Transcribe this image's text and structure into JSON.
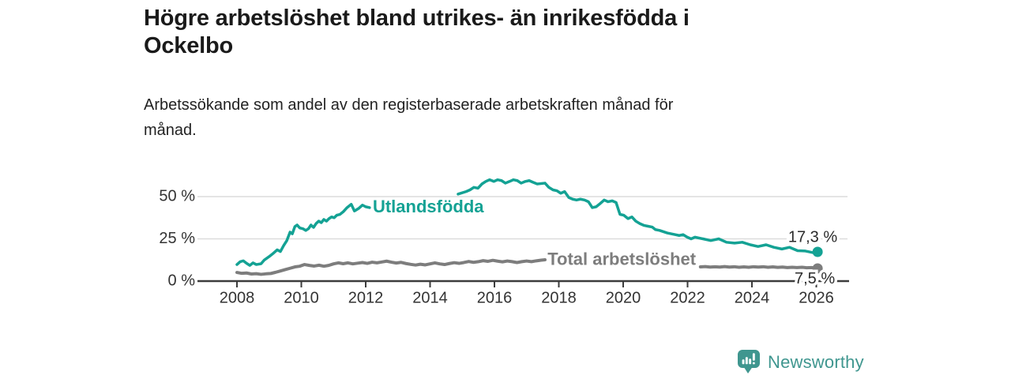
{
  "header": {
    "title_lines": [
      "Högre arbetslöshet bland utrikes- än inrikesfödda i",
      "Ockelbo"
    ],
    "subtitle_lines": [
      "Arbetssökande som andel av den registerbaserade arbetskraften månad för",
      "månad."
    ]
  },
  "footer": {
    "brand": "Newsworthy",
    "brand_color": "#3f968f"
  },
  "chart_data": {
    "type": "line",
    "title": "Högre arbetslöshet bland utrikes- än inrikesfödda i Ockelbo",
    "subtitle": "Arbetssökande som andel av den registerbaserade arbetskraften månad för månad.",
    "xlabel": "",
    "ylabel": "",
    "xlim": [
      2007.9,
      2027
    ],
    "ylim": [
      0,
      62
    ],
    "grid": "horizontal",
    "legend_position": "inline-labels",
    "x_ticks": [
      2008,
      2010,
      2012,
      2014,
      2016,
      2018,
      2020,
      2022,
      2024,
      2026
    ],
    "y_ticks": [
      {
        "value": 0,
        "label": "0 %"
      },
      {
        "value": 25,
        "label": "25 %"
      },
      {
        "value": 50,
        "label": "50 %"
      }
    ],
    "series": [
      {
        "name": "Utlandsfödda",
        "color": "#14a294",
        "line_label": {
          "text": "Utlandsfödda",
          "year": 2012.22,
          "pct": 43.5
        },
        "end_label": {
          "text": "17,3 %",
          "year": 2026.04,
          "pct": 17.3
        },
        "segments": [
          [
            [
              2008.0,
              9.8
            ],
            [
              2008.1,
              11.5
            ],
            [
              2008.2,
              12.0
            ],
            [
              2008.3,
              10.5
            ],
            [
              2008.4,
              9.3
            ],
            [
              2008.5,
              10.8
            ],
            [
              2008.6,
              9.8
            ],
            [
              2008.75,
              10.3
            ],
            [
              2008.85,
              12.5
            ],
            [
              2009.0,
              14.5
            ],
            [
              2009.1,
              16.0
            ],
            [
              2009.25,
              18.5
            ],
            [
              2009.35,
              17.5
            ],
            [
              2009.45,
              21.0
            ],
            [
              2009.55,
              24.0
            ],
            [
              2009.65,
              29.0
            ],
            [
              2009.72,
              28.0
            ],
            [
              2009.8,
              32.3
            ],
            [
              2009.87,
              33.2
            ],
            [
              2009.95,
              31.5
            ],
            [
              2010.05,
              31.0
            ],
            [
              2010.14,
              30.0
            ],
            [
              2010.22,
              31.0
            ],
            [
              2010.3,
              33.2
            ],
            [
              2010.38,
              31.8
            ],
            [
              2010.46,
              34.1
            ],
            [
              2010.54,
              35.5
            ],
            [
              2010.62,
              34.6
            ],
            [
              2010.7,
              36.5
            ],
            [
              2010.78,
              35.5
            ],
            [
              2010.86,
              37.0
            ],
            [
              2010.94,
              38.0
            ],
            [
              2011.02,
              37.5
            ],
            [
              2011.1,
              39.0
            ],
            [
              2011.2,
              39.5
            ],
            [
              2011.3,
              41.0
            ],
            [
              2011.42,
              43.5
            ],
            [
              2011.55,
              45.5
            ],
            [
              2011.65,
              41.5
            ],
            [
              2011.78,
              43.0
            ],
            [
              2011.9,
              45.0
            ],
            [
              2012.0,
              44.0
            ],
            [
              2012.12,
              43.5
            ]
          ],
          [
            [
              2014.87,
              51.5
            ],
            [
              2015.12,
              53.0
            ],
            [
              2015.24,
              54.0
            ],
            [
              2015.36,
              55.5
            ],
            [
              2015.49,
              55.0
            ],
            [
              2015.61,
              57.5
            ],
            [
              2015.73,
              59.0
            ],
            [
              2015.85,
              60.0
            ],
            [
              2015.98,
              59.0
            ],
            [
              2016.1,
              60.0
            ],
            [
              2016.22,
              59.5
            ],
            [
              2016.34,
              58.0
            ],
            [
              2016.47,
              59.0
            ],
            [
              2016.59,
              60.0
            ],
            [
              2016.71,
              59.5
            ],
            [
              2016.83,
              58.0
            ],
            [
              2016.96,
              59.0
            ],
            [
              2017.08,
              59.5
            ],
            [
              2017.2,
              58.5
            ],
            [
              2017.33,
              57.5
            ],
            [
              2017.57,
              58.0
            ],
            [
              2017.69,
              55.5
            ],
            [
              2017.82,
              54.0
            ],
            [
              2017.94,
              53.5
            ],
            [
              2018.06,
              52.0
            ],
            [
              2018.18,
              53.0
            ],
            [
              2018.31,
              49.5
            ],
            [
              2018.43,
              48.5
            ],
            [
              2018.55,
              48.0
            ],
            [
              2018.67,
              48.5
            ],
            [
              2018.8,
              48.0
            ],
            [
              2018.92,
              47.0
            ],
            [
              2019.04,
              43.5
            ],
            [
              2019.16,
              44.0
            ],
            [
              2019.29,
              46.0
            ],
            [
              2019.41,
              48.0
            ],
            [
              2019.53,
              47.0
            ],
            [
              2019.66,
              47.5
            ],
            [
              2019.78,
              46.5
            ],
            [
              2019.9,
              39.5
            ],
            [
              2020.02,
              39.0
            ],
            [
              2020.15,
              37.0
            ],
            [
              2020.27,
              38.0
            ],
            [
              2020.39,
              35.5
            ],
            [
              2020.52,
              34.0
            ],
            [
              2020.64,
              33.0
            ],
            [
              2020.77,
              32.5
            ],
            [
              2020.9,
              32.0
            ],
            [
              2021.0,
              30.5
            ],
            [
              2021.13,
              30.0
            ],
            [
              2021.37,
              28.5
            ],
            [
              2021.62,
              27.5
            ],
            [
              2021.74,
              27.0
            ],
            [
              2021.86,
              27.5
            ],
            [
              2021.99,
              26.0
            ],
            [
              2022.11,
              25.0
            ],
            [
              2022.23,
              26.0
            ],
            [
              2022.48,
              25.0
            ],
            [
              2022.72,
              24.0
            ],
            [
              2022.97,
              25.0
            ],
            [
              2023.21,
              23.0
            ],
            [
              2023.46,
              22.5
            ],
            [
              2023.7,
              23.0
            ],
            [
              2023.95,
              21.5
            ],
            [
              2024.19,
              20.5
            ],
            [
              2024.44,
              21.5
            ],
            [
              2024.68,
              20.0
            ],
            [
              2024.93,
              19.0
            ],
            [
              2025.17,
              20.0
            ],
            [
              2025.42,
              18.0
            ],
            [
              2025.66,
              17.8
            ],
            [
              2025.91,
              16.8
            ],
            [
              2026.04,
              17.3
            ]
          ]
        ]
      },
      {
        "name": "Total arbetslöshet",
        "color": "#7d7d7d",
        "line_label": {
          "text": "Total arbetslöshet",
          "year": 2017.65,
          "pct": 12.2
        },
        "end_label": {
          "text": "7,5 %",
          "year": 2026.04,
          "pct": 7.5
        },
        "segments": [
          [
            [
              2008.0,
              5.1
            ],
            [
              2008.15,
              4.6
            ],
            [
              2008.3,
              4.8
            ],
            [
              2008.45,
              4.2
            ],
            [
              2008.6,
              4.4
            ],
            [
              2008.75,
              4.0
            ],
            [
              2008.9,
              4.3
            ],
            [
              2009.05,
              4.5
            ],
            [
              2009.2,
              5.2
            ],
            [
              2009.35,
              6.0
            ],
            [
              2009.5,
              6.8
            ],
            [
              2009.65,
              7.6
            ],
            [
              2009.8,
              8.4
            ],
            [
              2009.95,
              8.8
            ],
            [
              2010.1,
              9.8
            ],
            [
              2010.25,
              9.3
            ],
            [
              2010.4,
              8.9
            ],
            [
              2010.55,
              9.4
            ],
            [
              2010.7,
              8.8
            ],
            [
              2010.85,
              9.3
            ],
            [
              2011.0,
              10.2
            ],
            [
              2011.15,
              10.8
            ],
            [
              2011.3,
              10.3
            ],
            [
              2011.45,
              10.8
            ],
            [
              2011.6,
              10.2
            ],
            [
              2011.75,
              10.6
            ],
            [
              2011.9,
              11.0
            ],
            [
              2012.05,
              10.5
            ],
            [
              2012.2,
              11.2
            ],
            [
              2012.35,
              10.8
            ],
            [
              2012.5,
              11.3
            ],
            [
              2012.65,
              11.8
            ],
            [
              2012.8,
              11.2
            ],
            [
              2012.95,
              10.7
            ],
            [
              2013.1,
              11.1
            ],
            [
              2013.25,
              10.4
            ],
            [
              2013.4,
              9.9
            ],
            [
              2013.55,
              9.5
            ],
            [
              2013.7,
              10.0
            ],
            [
              2013.85,
              9.6
            ],
            [
              2014.0,
              10.2
            ],
            [
              2014.15,
              10.8
            ],
            [
              2014.3,
              10.2
            ],
            [
              2014.45,
              9.8
            ],
            [
              2014.6,
              10.4
            ],
            [
              2014.75,
              10.9
            ],
            [
              2014.9,
              10.5
            ],
            [
              2015.05,
              11.0
            ],
            [
              2015.2,
              11.6
            ],
            [
              2015.35,
              11.1
            ],
            [
              2015.5,
              11.5
            ],
            [
              2015.65,
              12.1
            ],
            [
              2015.8,
              11.7
            ],
            [
              2015.95,
              12.3
            ],
            [
              2016.1,
              11.8
            ],
            [
              2016.25,
              11.4
            ],
            [
              2016.4,
              11.9
            ],
            [
              2016.55,
              11.5
            ],
            [
              2016.7,
              11.0
            ],
            [
              2016.85,
              11.5
            ],
            [
              2017.0,
              11.9
            ],
            [
              2017.15,
              11.5
            ],
            [
              2017.3,
              12.0
            ],
            [
              2017.45,
              12.4
            ],
            [
              2017.57,
              12.6
            ]
          ],
          [
            [
              2022.4,
              8.4
            ],
            [
              2022.55,
              8.6
            ],
            [
              2022.7,
              8.3
            ],
            [
              2022.85,
              8.5
            ],
            [
              2023.0,
              8.3
            ],
            [
              2023.15,
              8.6
            ],
            [
              2023.3,
              8.3
            ],
            [
              2023.45,
              8.5
            ],
            [
              2023.6,
              8.2
            ],
            [
              2023.75,
              8.4
            ],
            [
              2023.9,
              8.2
            ],
            [
              2024.05,
              8.5
            ],
            [
              2024.2,
              8.3
            ],
            [
              2024.35,
              8.5
            ],
            [
              2024.5,
              8.2
            ],
            [
              2024.65,
              8.4
            ],
            [
              2024.8,
              8.1
            ],
            [
              2024.95,
              8.3
            ],
            [
              2025.1,
              8.0
            ],
            [
              2025.25,
              8.2
            ],
            [
              2025.4,
              8.0
            ],
            [
              2025.55,
              8.2
            ],
            [
              2025.7,
              7.9
            ],
            [
              2025.85,
              8.0
            ],
            [
              2026.04,
              7.5
            ]
          ]
        ]
      }
    ]
  }
}
